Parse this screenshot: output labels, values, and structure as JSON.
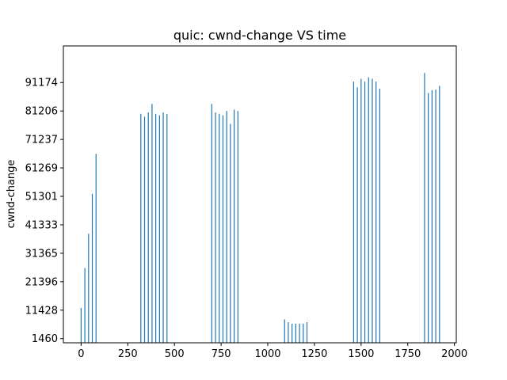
{
  "chart_data": {
    "type": "bar",
    "title": "quic: cwnd-change VS time",
    "xlabel": "",
    "ylabel": "cwnd-change",
    "xlim": [
      -95,
      2010
    ],
    "ylim": [
      0,
      104000
    ],
    "xticks": [
      0,
      250,
      500,
      750,
      1000,
      1250,
      1500,
      1750,
      2000
    ],
    "yticks": [
      1460,
      11428,
      21396,
      31365,
      41333,
      51301,
      61269,
      71237,
      81206,
      91174
    ],
    "color": "#1f77b4",
    "grid": false,
    "x": [
      0,
      20,
      40,
      60,
      80,
      320,
      340,
      360,
      380,
      400,
      420,
      440,
      460,
      700,
      720,
      740,
      760,
      780,
      800,
      820,
      840,
      1090,
      1110,
      1130,
      1150,
      1170,
      1190,
      1210,
      1460,
      1480,
      1500,
      1520,
      1540,
      1560,
      1580,
      1600,
      1840,
      1860,
      1880,
      1900,
      1920
    ],
    "values": [
      12200,
      26200,
      38200,
      52200,
      66200,
      80200,
      79200,
      80700,
      83700,
      80200,
      79700,
      80700,
      80200,
      83700,
      80700,
      80200,
      79700,
      81200,
      76700,
      81700,
      81200,
      8200,
      7200,
      6700,
      6700,
      6700,
      6700,
      7200,
      91500,
      89500,
      92500,
      91500,
      93000,
      92500,
      91500,
      89000,
      94500,
      87500,
      88500,
      88700,
      90000
    ]
  }
}
